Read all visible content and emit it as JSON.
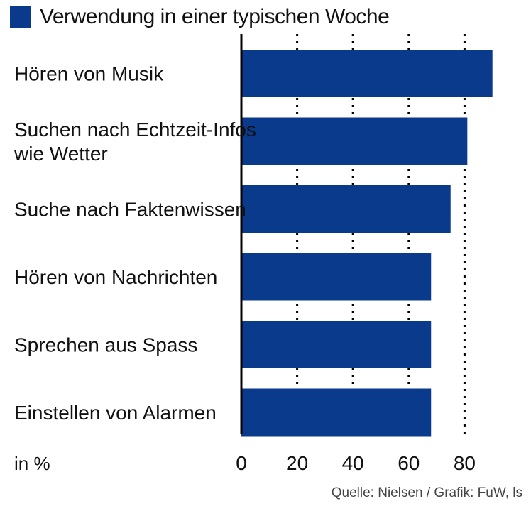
{
  "chart_data": {
    "type": "bar",
    "orientation": "horizontal",
    "title": "Verwendung in einer typischen Woche",
    "categories": [
      [
        "Hören von Musik"
      ],
      [
        "Suchen nach Echtzeit-Infos",
        "wie Wetter"
      ],
      [
        "Suche nach Faktenwissen"
      ],
      [
        "Hören von Nachrichten"
      ],
      [
        "Sprechen aus Spass"
      ],
      [
        "Einstellen von Alarmen"
      ]
    ],
    "values": [
      90,
      81,
      75,
      68,
      68,
      68
    ],
    "xlabel": "in %",
    "xlim": [
      0,
      100
    ],
    "ticks": [
      0,
      20,
      40,
      60,
      80
    ],
    "tick_labels": [
      "0",
      "20",
      "40",
      "60",
      "80"
    ],
    "gridlines": [
      20,
      40,
      60,
      80
    ],
    "color": "#0a3a8c",
    "source": "Quelle: Nielsen / Grafik: FuW, ls"
  }
}
